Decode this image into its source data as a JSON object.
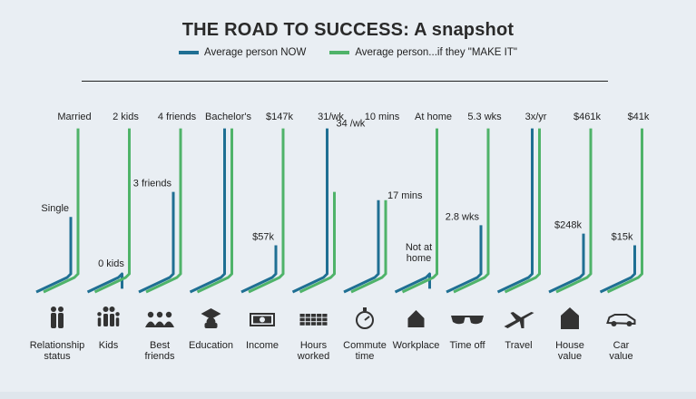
{
  "title": "THE ROAD TO SUCCESS: A snapshot",
  "legend": {
    "now": "Average person NOW",
    "make_it": "Average person...if they \"MAKE IT\""
  },
  "colors": {
    "now": "#1f6f93",
    "make_it": "#4fb369",
    "text": "#222222",
    "icon": "#333333"
  },
  "chart_data": {
    "type": "bar",
    "title": "THE ROAD TO SUCCESS: A snapshot",
    "series": [
      {
        "name": "Average person NOW",
        "values": [
          0.45,
          0.02,
          0.6,
          0.98,
          0.28,
          0.98,
          0.55,
          0.02,
          0.4,
          0.98,
          0.35,
          0.28
        ]
      },
      {
        "name": "Average person...if they \"MAKE IT\"",
        "values": [
          0.98,
          0.98,
          0.98,
          0.98,
          0.98,
          0.6,
          0.55,
          0.98,
          0.98,
          0.98,
          0.98,
          0.98
        ]
      }
    ],
    "categories": [
      {
        "label": [
          "Relationship",
          "status"
        ],
        "now_label": "Single",
        "make_it_label": "Married",
        "icon": "people-couple-icon"
      },
      {
        "label": [
          "Kids"
        ],
        "now_label": "0 kids",
        "make_it_label": "2 kids",
        "icon": "family-icon"
      },
      {
        "label": [
          "Best",
          "friends"
        ],
        "now_label": "3 friends",
        "make_it_label": "4 friends",
        "icon": "friends-group-icon"
      },
      {
        "label": [
          "Education"
        ],
        "now_label": "",
        "make_it_label": "Bachelor's",
        "icon": "graduation-cap-icon"
      },
      {
        "label": [
          "Income"
        ],
        "now_label": "$57k",
        "make_it_label": "$147k",
        "icon": "money-bill-icon"
      },
      {
        "label": [
          "Hours",
          "worked"
        ],
        "now_label": "34 /wk",
        "make_it_label": "31/wk",
        "icon": "calendar-grid-icon"
      },
      {
        "label": [
          "Commute",
          "time"
        ],
        "now_label": "17 mins",
        "make_it_label": "10 mins",
        "icon": "stopwatch-icon"
      },
      {
        "label": [
          "Workplace"
        ],
        "now_label": [
          "Not at",
          "home"
        ],
        "make_it_label": "At home",
        "icon": "house-icon"
      },
      {
        "label": [
          "Time off"
        ],
        "now_label": "2.8 wks",
        "make_it_label": "5.3 wks",
        "icon": "sunglasses-icon"
      },
      {
        "label": [
          "Travel"
        ],
        "now_label": "",
        "make_it_label": "3x/yr",
        "icon": "airplane-icon"
      },
      {
        "label": [
          "House",
          "value"
        ],
        "now_label": "$248k",
        "make_it_label": "$461k",
        "icon": "house-value-icon"
      },
      {
        "label": [
          "Car",
          "value"
        ],
        "now_label": "$15k",
        "make_it_label": "$41k",
        "icon": "car-icon"
      }
    ]
  }
}
